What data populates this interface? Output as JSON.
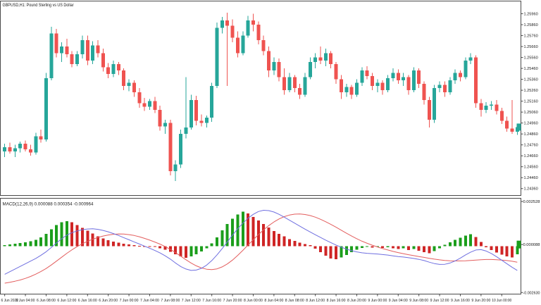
{
  "window": {
    "title": "GBPUSD,H1: Pound Sterling vs US Dollar"
  },
  "colors": {
    "background": "#ffffff",
    "border": "#4a4a4a",
    "axis_text": "#1a1a1a",
    "bull": "#26a69a",
    "bear": "#ef5350",
    "hist_up": "#1b9e1b",
    "hist_down": "#cf2525",
    "macd_main": "#6f6fe0",
    "macd_signal": "#e35e5e",
    "price_tag": "#26a69a",
    "macd_tag": "#1b9e1b"
  },
  "chart_data": [
    {
      "type": "candlestick",
      "symbol_title": "GBPUSD,H1: Pound Sterling vs US Dollar",
      "symbol": "GBPUSD",
      "timeframe": "H1",
      "grid": false,
      "legend_position": "none",
      "ylim": [
        1.2431,
        1.2606
      ],
      "y_ticks": [
        1.2596,
        1.2586,
        1.2576,
        1.2566,
        1.2556,
        1.2546,
        1.2536,
        1.2526,
        1.2516,
        1.2506,
        1.2496,
        1.2486,
        1.2476,
        1.2466,
        1.2456,
        1.2446,
        1.2436
      ],
      "current_price": 1.24923,
      "x_label_step": 4,
      "x_labels": [
        "6 Jun 2022",
        "6 Jun 04:00",
        "6 Jun 08:00",
        "6 Jun 12:00",
        "6 Jun 16:00",
        "6 Jun 20:00",
        "7 Jun 00:00",
        "7 Jun 04:00",
        "7 Jun 08:00",
        "7 Jun 12:00",
        "7 Jun 16:00",
        "7 Jun 20:00",
        "8 Jun 00:00",
        "8 Jun 04:00",
        "8 Jun 08:00",
        "8 Jun 12:00",
        "8 Jun 16:00",
        "8 Jun 20:00",
        "9 Jun 00:00",
        "9 Jun 04:00",
        "9 Jun 08:00",
        "9 Jun 12:00",
        "9 Jun 16:00",
        "9 Jun 20:00",
        "10 Jun 00:00"
      ],
      "candles": [
        [
          1.247,
          1.2477,
          1.2465,
          1.2474
        ],
        [
          1.2474,
          1.2478,
          1.2468,
          1.247
        ],
        [
          1.247,
          1.2476,
          1.2465,
          1.2473
        ],
        [
          1.2473,
          1.2479,
          1.2469,
          1.2477
        ],
        [
          1.2477,
          1.248,
          1.247,
          1.2472
        ],
        [
          1.2472,
          1.2476,
          1.2466,
          1.2469
        ],
        [
          1.2469,
          1.2487,
          1.2467,
          1.2484
        ],
        [
          1.2484,
          1.249,
          1.2478,
          1.2481
        ],
        [
          1.2481,
          1.2542,
          1.2479,
          1.2537
        ],
        [
          1.2537,
          1.2584,
          1.2535,
          1.2578
        ],
        [
          1.2578,
          1.2582,
          1.2556,
          1.256
        ],
        [
          1.256,
          1.257,
          1.2552,
          1.2566
        ],
        [
          1.2566,
          1.2573,
          1.2556,
          1.2559
        ],
        [
          1.2559,
          1.2562,
          1.2547,
          1.255
        ],
        [
          1.255,
          1.2562,
          1.2548,
          1.2559
        ],
        [
          1.2559,
          1.2576,
          1.2555,
          1.2572
        ],
        [
          1.2572,
          1.2576,
          1.2549,
          1.2553
        ],
        [
          1.2553,
          1.2571,
          1.255,
          1.2567
        ],
        [
          1.2567,
          1.2572,
          1.2556,
          1.256
        ],
        [
          1.256,
          1.2564,
          1.2543,
          1.2547
        ],
        [
          1.2547,
          1.2551,
          1.2537,
          1.2541
        ],
        [
          1.2541,
          1.2553,
          1.2538,
          1.255
        ],
        [
          1.255,
          1.2552,
          1.254,
          1.2544
        ],
        [
          1.2544,
          1.2546,
          1.2526,
          1.253
        ],
        [
          1.253,
          1.2536,
          1.2525,
          1.2533
        ],
        [
          1.2533,
          1.2535,
          1.252,
          1.2524
        ],
        [
          1.2524,
          1.2528,
          1.251,
          1.2514
        ],
        [
          1.2514,
          1.2519,
          1.2507,
          1.2511
        ],
        [
          1.2511,
          1.2518,
          1.2508,
          1.2516
        ],
        [
          1.2516,
          1.252,
          1.2505,
          1.2508
        ],
        [
          1.2508,
          1.2512,
          1.2489,
          1.2493
        ],
        [
          1.2493,
          1.2499,
          1.2486,
          1.2496
        ],
        [
          1.2496,
          1.2499,
          1.2448,
          1.2452
        ],
        [
          1.2452,
          1.2462,
          1.2443,
          1.2458
        ],
        [
          1.2458,
          1.249,
          1.2455,
          1.2486
        ],
        [
          1.2486,
          1.2538,
          1.2482,
          1.2492
        ],
        [
          1.2492,
          1.2522,
          1.249,
          1.2517
        ],
        [
          1.2517,
          1.2521,
          1.2494,
          1.2498
        ],
        [
          1.2498,
          1.2504,
          1.2493,
          1.2496
        ],
        [
          1.2496,
          1.2503,
          1.2492,
          1.2501
        ],
        [
          1.2501,
          1.2533,
          1.2497,
          1.253
        ],
        [
          1.253,
          1.2588,
          1.2528,
          1.2583
        ],
        [
          1.2583,
          1.2593,
          1.2578,
          1.259
        ],
        [
          1.259,
          1.2597,
          1.253,
          1.2585
        ],
        [
          1.2585,
          1.2591,
          1.257,
          1.2574
        ],
        [
          1.2574,
          1.258,
          1.2556,
          1.256
        ],
        [
          1.256,
          1.258,
          1.2558,
          1.2576
        ],
        [
          1.2576,
          1.2594,
          1.2574,
          1.259
        ],
        [
          1.259,
          1.2596,
          1.258,
          1.2586
        ],
        [
          1.2586,
          1.2589,
          1.2568,
          1.2572
        ],
        [
          1.2572,
          1.2576,
          1.2558,
          1.2562
        ],
        [
          1.2562,
          1.2566,
          1.2538,
          1.2544
        ],
        [
          1.2544,
          1.2556,
          1.254,
          1.2552
        ],
        [
          1.2552,
          1.2555,
          1.2534,
          1.2538
        ],
        [
          1.2538,
          1.2546,
          1.2522,
          1.2526
        ],
        [
          1.2526,
          1.2542,
          1.2524,
          1.2538
        ],
        [
          1.2538,
          1.254,
          1.2524,
          1.2528
        ],
        [
          1.2528,
          1.2532,
          1.2518,
          1.2522
        ],
        [
          1.2522,
          1.2542,
          1.252,
          1.2538
        ],
        [
          1.2538,
          1.2556,
          1.2536,
          1.2552
        ],
        [
          1.2552,
          1.256,
          1.2546,
          1.2556
        ],
        [
          1.2556,
          1.2566,
          1.255,
          1.2553
        ],
        [
          1.2553,
          1.2564,
          1.2548,
          1.256
        ],
        [
          1.256,
          1.2562,
          1.2546,
          1.255
        ],
        [
          1.255,
          1.2552,
          1.2532,
          1.2536
        ],
        [
          1.2536,
          1.254,
          1.2518,
          1.2524
        ],
        [
          1.2524,
          1.2532,
          1.252,
          1.2529
        ],
        [
          1.2529,
          1.2531,
          1.2518,
          1.2522
        ],
        [
          1.2522,
          1.2536,
          1.252,
          1.2533
        ],
        [
          1.2533,
          1.2547,
          1.253,
          1.2544
        ],
        [
          1.2544,
          1.2548,
          1.2536,
          1.2539
        ],
        [
          1.2539,
          1.2542,
          1.2526,
          1.253
        ],
        [
          1.253,
          1.2536,
          1.2524,
          1.2533
        ],
        [
          1.2533,
          1.2535,
          1.2522,
          1.2526
        ],
        [
          1.2526,
          1.254,
          1.2524,
          1.2537
        ],
        [
          1.2537,
          1.2546,
          1.2534,
          1.2542
        ],
        [
          1.2542,
          1.2545,
          1.2532,
          1.2535
        ],
        [
          1.2535,
          1.2542,
          1.253,
          1.2538
        ],
        [
          1.2538,
          1.254,
          1.2522,
          1.2526
        ],
        [
          1.2526,
          1.2547,
          1.2524,
          1.2544
        ],
        [
          1.2544,
          1.2546,
          1.2528,
          1.2532
        ],
        [
          1.2532,
          1.2534,
          1.2513,
          1.2517
        ],
        [
          1.2517,
          1.252,
          1.2492,
          1.2499
        ],
        [
          1.2499,
          1.2531,
          1.2496,
          1.2528
        ],
        [
          1.2528,
          1.2534,
          1.2524,
          1.2531
        ],
        [
          1.2531,
          1.2534,
          1.252,
          1.2524
        ],
        [
          1.2524,
          1.2538,
          1.2522,
          1.2535
        ],
        [
          1.2535,
          1.2545,
          1.2532,
          1.2542
        ],
        [
          1.2542,
          1.2544,
          1.2534,
          1.2538
        ],
        [
          1.2538,
          1.2556,
          1.2536,
          1.2553
        ],
        [
          1.2553,
          1.256,
          1.255,
          1.2556
        ],
        [
          1.2556,
          1.2558,
          1.251,
          1.2514
        ],
        [
          1.2514,
          1.2518,
          1.2502,
          1.2508
        ],
        [
          1.2508,
          1.2515,
          1.2505,
          1.2512
        ],
        [
          1.2512,
          1.2516,
          1.2508,
          1.2513
        ],
        [
          1.2513,
          1.2517,
          1.2504,
          1.2507
        ],
        [
          1.2507,
          1.251,
          1.2495,
          1.2498
        ],
        [
          1.2498,
          1.2502,
          1.2488,
          1.2491
        ],
        [
          1.2491,
          1.2517,
          1.2486,
          1.2488
        ],
        [
          1.2488,
          1.2495,
          1.2485,
          1.24923
        ]
      ]
    },
    {
      "type": "macd",
      "label": "MACD(12,26,9) 0.000088 0.000354 -0.000964",
      "params": [
        12,
        26,
        9
      ],
      "grid": false,
      "ylim": [
        -0.00268,
        0.00265
      ],
      "y_ticks": [
        0.002528,
        8.8e-05,
        -0.00263
      ],
      "current_value": 8.8e-05,
      "histogram": [
        6e-05,
        0.0001,
        0.00014,
        0.00018,
        0.00022,
        0.00028,
        0.00036,
        0.0005,
        0.0007,
        0.00095,
        0.0012,
        0.00135,
        0.00142,
        0.00136,
        0.0012,
        0.00104,
        0.00088,
        0.00072,
        0.00056,
        0.00044,
        0.00034,
        0.00026,
        0.0002,
        0.00014,
        9e-05,
        5e-05,
        2e-05,
        0.0,
        -2e-05,
        -5e-05,
        -0.00012,
        -0.0002,
        -0.00032,
        -0.00046,
        -0.00058,
        -0.00066,
        -0.00058,
        -0.00046,
        -0.0003,
        -0.00012,
        0.00015,
        0.0005,
        0.0009,
        0.00125,
        0.00155,
        0.0018,
        0.00195,
        0.00185,
        0.00165,
        0.00145,
        0.00125,
        0.00105,
        0.00085,
        0.0007,
        0.00055,
        0.0004,
        0.0003,
        0.0002,
        0.00012,
        5e-05,
        -0.00015,
        -0.00035,
        -0.00055,
        -0.0007,
        -0.00075,
        -0.00065,
        -0.0005,
        -0.00035,
        -0.0002,
        -0.0001,
        -5e-05,
        -8e-05,
        -4e-05,
        -0.0001,
        -6e-05,
        -0.00012,
        -0.00016,
        -0.00012,
        -0.00022,
        -0.00016,
        -0.00026,
        -0.00034,
        -0.0004,
        -0.00028,
        -0.00012,
        8e-05,
        0.00022,
        0.00036,
        0.00048,
        0.0006,
        0.00068,
        0.00052,
        0.00024,
        -6e-05,
        -0.00022,
        -0.00036,
        -0.00048,
        -0.00058,
        -0.00064,
        -0.00046
      ],
      "main": [
        -0.0016,
        -0.00145,
        -0.0013,
        -0.00115,
        -0.001,
        -0.00085,
        -0.0007,
        -0.00052,
        -0.00032,
        -8e-05,
        0.00018,
        0.00042,
        0.00062,
        0.00076,
        0.00086,
        0.00093,
        0.00097,
        0.00098,
        0.00095,
        0.00089,
        0.00081,
        0.00071,
        0.0006,
        0.00048,
        0.00036,
        0.00024,
        0.00012,
        0.0,
        -0.00012,
        -0.00025,
        -0.00039,
        -0.00055,
        -0.00074,
        -0.00096,
        -0.00116,
        -0.0013,
        -0.00138,
        -0.00136,
        -0.00126,
        -0.00108,
        -0.00082,
        -0.0005,
        -0.00014,
        0.00024,
        0.00062,
        0.00098,
        0.0013,
        0.00158,
        0.0018,
        0.00196,
        0.00203,
        0.00201,
        0.00193,
        0.0018,
        0.00164,
        0.00147,
        0.0013,
        0.00113,
        0.00096,
        0.0008,
        0.00064,
        0.00049,
        0.00034,
        0.0002,
        6e-05,
        -6e-05,
        -0.00017,
        -0.00026,
        -0.00033,
        -0.00038,
        -0.00041,
        -0.00043,
        -0.00045,
        -0.00048,
        -0.00051,
        -0.00055,
        -0.00059,
        -0.00062,
        -0.00066,
        -0.0007,
        -0.00075,
        -0.00082,
        -0.00091,
        -0.00099,
        -0.00104,
        -0.00103,
        -0.00096,
        -0.00084,
        -0.00068,
        -0.0005,
        -0.00034,
        -0.00022,
        -0.0002,
        -0.00028,
        -0.00042,
        -0.0006,
        -0.0008,
        -0.001,
        -0.0012,
        -0.00138
      ],
      "signal": [
        -0.0021,
        -0.00205,
        -0.00199,
        -0.00192,
        -0.00183,
        -0.00172,
        -0.00159,
        -0.00144,
        -0.00127,
        -0.00107,
        -0.00085,
        -0.00063,
        -0.00041,
        -0.00021,
        -3e-05,
        0.00013,
        0.00027,
        0.00039,
        0.00049,
        0.00057,
        0.00063,
        0.00067,
        0.00069,
        0.00068,
        0.00065,
        0.0006,
        0.00053,
        0.00044,
        0.00034,
        0.00023,
        0.00011,
        -3e-05,
        -0.00019,
        -0.00037,
        -0.00057,
        -0.00077,
        -0.00096,
        -0.00112,
        -0.00124,
        -0.00131,
        -0.00133,
        -0.00129,
        -0.00118,
        -0.00101,
        -0.00079,
        -0.00053,
        -0.00024,
        6e-05,
        0.00036,
        0.00065,
        0.00092,
        0.00116,
        0.00137,
        0.00154,
        0.00167,
        0.00176,
        0.00181,
        0.00182,
        0.00179,
        0.00173,
        0.00164,
        0.00152,
        0.00138,
        0.00123,
        0.00107,
        0.0009,
        0.00073,
        0.00057,
        0.00042,
        0.00028,
        0.00016,
        5e-05,
        -5e-05,
        -0.00014,
        -0.00022,
        -0.0003,
        -0.00037,
        -0.00043,
        -0.00049,
        -0.00054,
        -0.00059,
        -0.00064,
        -0.00069,
        -0.00074,
        -0.00078,
        -0.00081,
        -0.00083,
        -0.00084,
        -0.00084,
        -0.00083,
        -0.00081,
        -0.00079,
        -0.00077,
        -0.00076,
        -0.00076,
        -0.00077,
        -0.00079,
        -0.00082,
        -0.00086,
        -0.00091
      ]
    }
  ]
}
